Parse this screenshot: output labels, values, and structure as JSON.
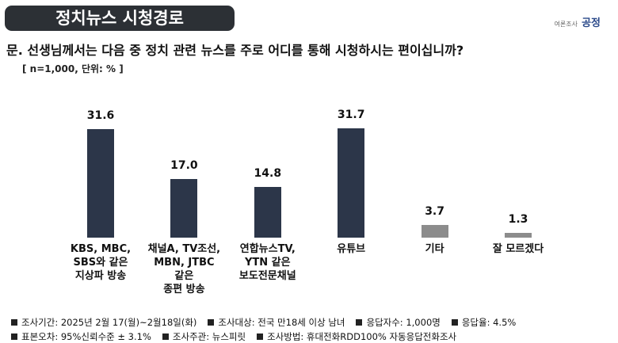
{
  "header": {
    "title": "정치뉴스 시청경로",
    "logo": {
      "small": "여론조사",
      "main": "공정"
    }
  },
  "chart_data": {
    "type": "bar",
    "title": "문. 선생님께서는 다음 중 정치 관련 뉴스를 주로 어디를 통해 시청하시는 편이십니까?",
    "subtitle": "[ n=1,000, 단위: % ]",
    "categories": [
      "KBS, MBC,\nSBS와 같은\n지상파 방송",
      "채널A, TV조선,\nMBN, JTBC\n같은\n종편 방송",
      "연합뉴스TV,\nYTN 같은\n보도전문채널",
      "유튜브",
      "기타",
      "잘 모르겠다"
    ],
    "values": [
      31.6,
      17.0,
      14.8,
      31.7,
      3.7,
      1.3
    ],
    "value_labels": [
      "31.6",
      "17.0",
      "14.8",
      "31.7",
      "3.7",
      "1.3"
    ],
    "colors": [
      "#2c3649",
      "#2c3649",
      "#2c3649",
      "#2c3649",
      "#8c8c8c",
      "#8c8c8c"
    ]
  },
  "footer": {
    "rows": [
      [
        "조사기간: 2025년 2월 17(월)~2월18일(화)",
        "조사대상: 전국 만18세 이상 남녀",
        "응답자수: 1,000명",
        "응답율: 4.5%"
      ],
      [
        "표본오차: 95%신뢰수준 ± 3.1%",
        "조사주관: 뉴스피릿",
        "조사방법: 휴대전화RDD100% 자동응답전화조사"
      ]
    ]
  }
}
